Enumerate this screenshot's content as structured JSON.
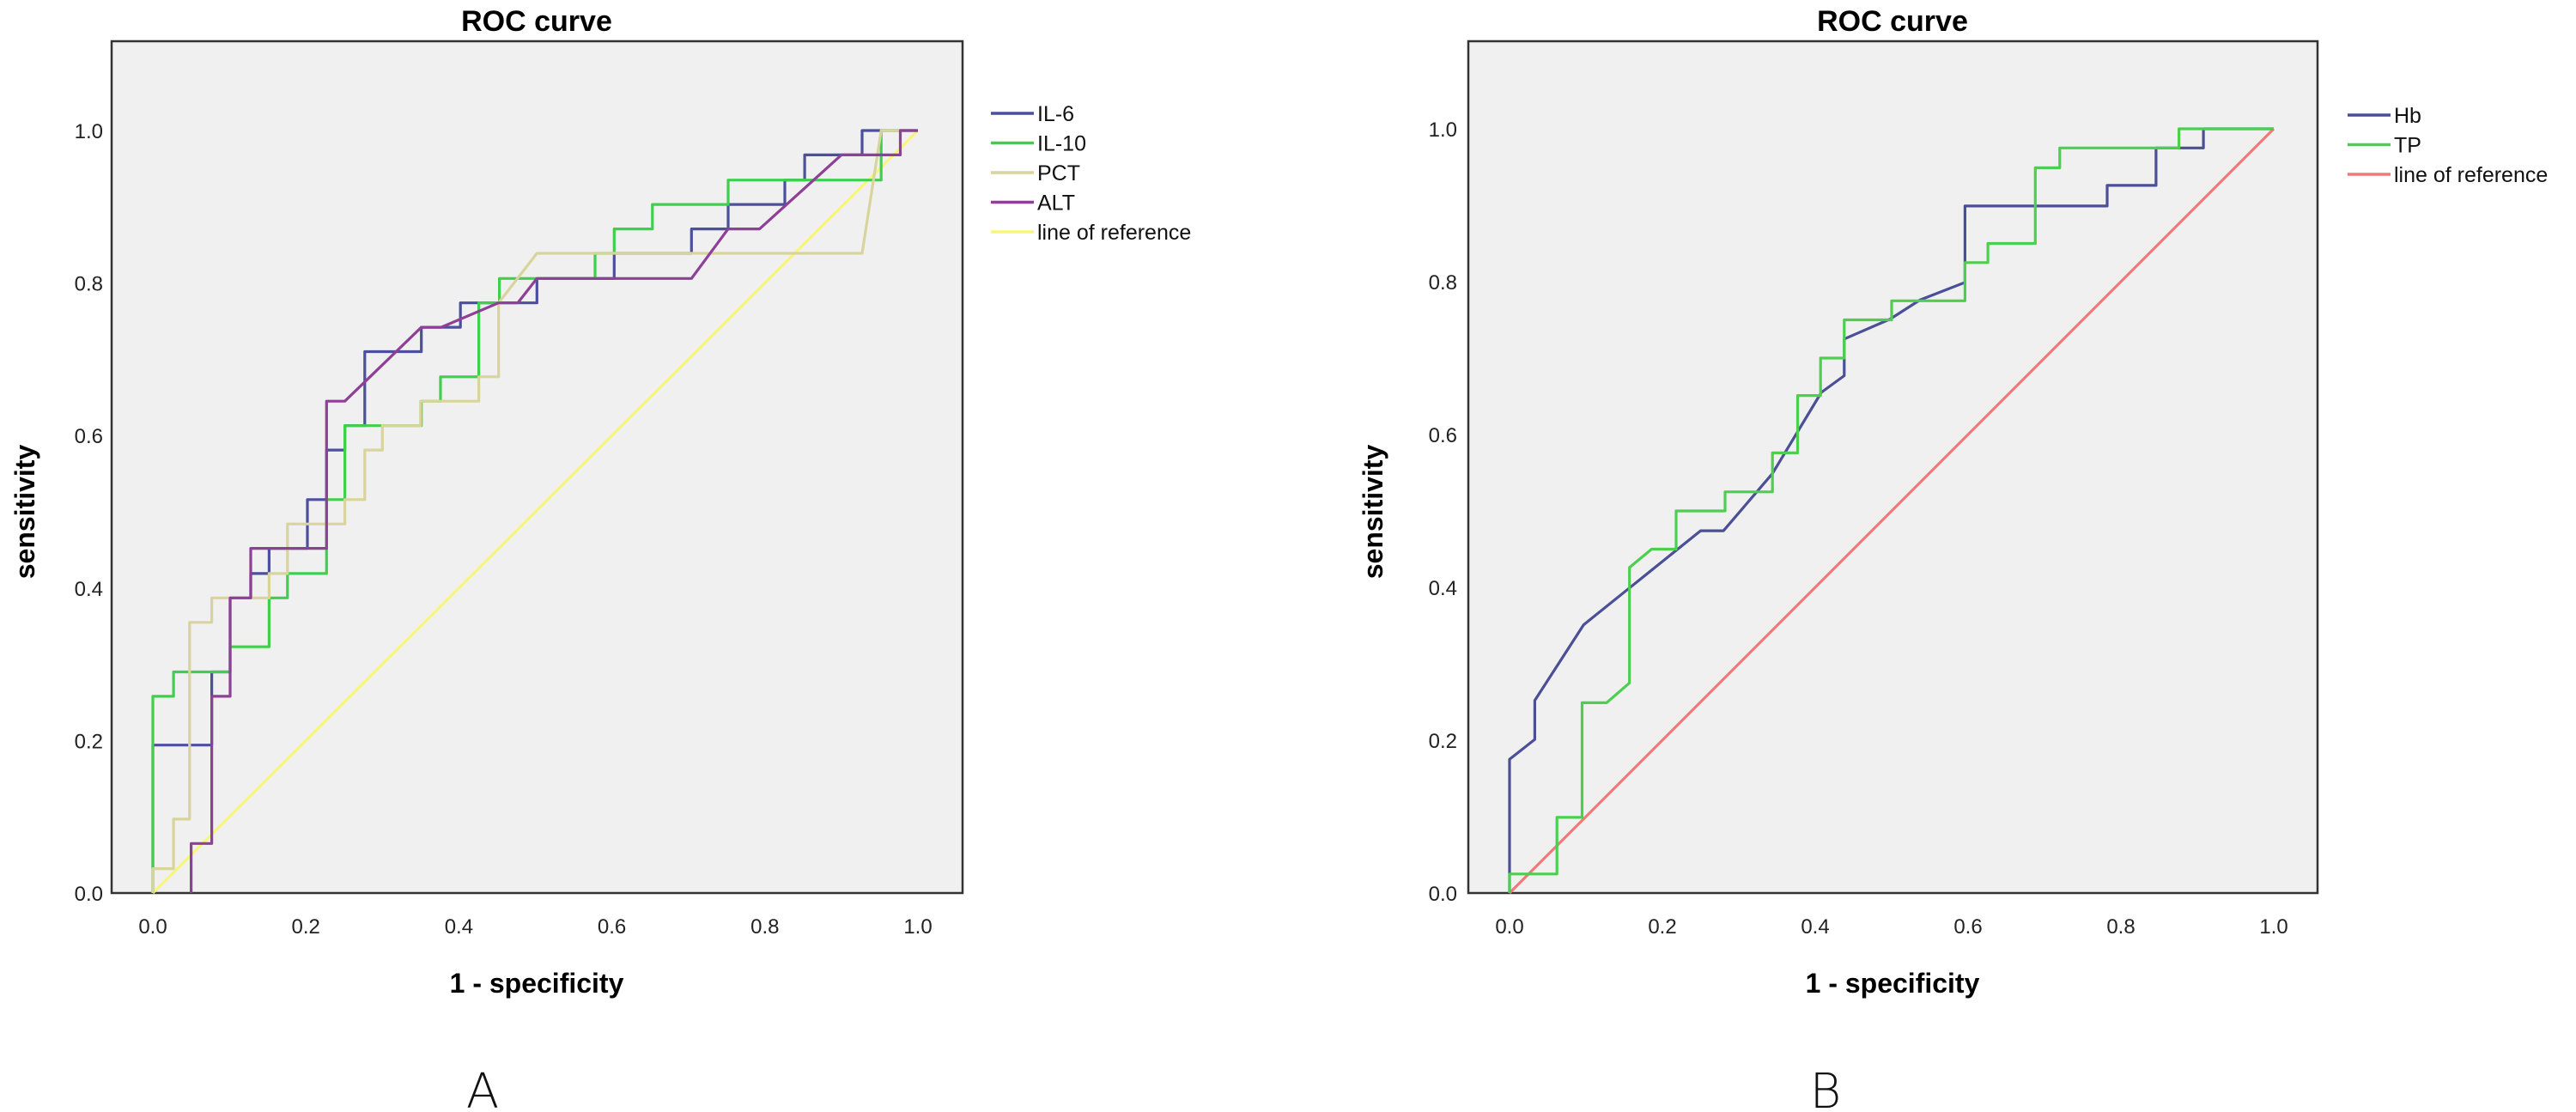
{
  "chart_data": [
    {
      "panel_label": "A",
      "type": "line",
      "title": "ROC curve",
      "xlabel": "1 - specificity",
      "ylabel": "sensitivity",
      "xlim": [
        0,
        1
      ],
      "ylim": [
        0,
        1
      ],
      "xticks": [
        "0.0",
        "0.2",
        "0.4",
        "0.6",
        "0.8",
        "1.0"
      ],
      "yticks": [
        "0.0",
        "0.2",
        "0.4",
        "0.6",
        "0.8",
        "1.0"
      ],
      "grid": false,
      "background": "#f0f0f0",
      "legend_position": "right",
      "series": [
        {
          "name": "IL-6",
          "color": "#4c4f9c",
          "points": [
            [
              0,
              0
            ],
            [
              0,
              0.194
            ],
            [
              0.077,
              0.194
            ],
            [
              0.077,
              0.29
            ],
            [
              0.101,
              0.29
            ],
            [
              0.101,
              0.387
            ],
            [
              0.128,
              0.387
            ],
            [
              0.128,
              0.419
            ],
            [
              0.152,
              0.419
            ],
            [
              0.152,
              0.452
            ],
            [
              0.202,
              0.452
            ],
            [
              0.202,
              0.516
            ],
            [
              0.227,
              0.516
            ],
            [
              0.227,
              0.581
            ],
            [
              0.251,
              0.581
            ],
            [
              0.251,
              0.613
            ],
            [
              0.277,
              0.613
            ],
            [
              0.277,
              0.71
            ],
            [
              0.351,
              0.71
            ],
            [
              0.351,
              0.742
            ],
            [
              0.402,
              0.742
            ],
            [
              0.402,
              0.774
            ],
            [
              0.502,
              0.774
            ],
            [
              0.502,
              0.806
            ],
            [
              0.603,
              0.806
            ],
            [
              0.603,
              0.839
            ],
            [
              0.704,
              0.839
            ],
            [
              0.704,
              0.871
            ],
            [
              0.752,
              0.871
            ],
            [
              0.752,
              0.903
            ],
            [
              0.826,
              0.903
            ],
            [
              0.826,
              0.935
            ],
            [
              0.852,
              0.935
            ],
            [
              0.852,
              0.968
            ],
            [
              0.927,
              0.968
            ],
            [
              0.927,
              1.0
            ],
            [
              1,
              1
            ]
          ]
        },
        {
          "name": "IL-10",
          "color": "#3fcf4c",
          "points": [
            [
              0,
              0
            ],
            [
              0,
              0.258
            ],
            [
              0.027,
              0.258
            ],
            [
              0.027,
              0.29
            ],
            [
              0.101,
              0.29
            ],
            [
              0.101,
              0.323
            ],
            [
              0.152,
              0.323
            ],
            [
              0.152,
              0.387
            ],
            [
              0.176,
              0.387
            ],
            [
              0.176,
              0.419
            ],
            [
              0.227,
              0.419
            ],
            [
              0.227,
              0.516
            ],
            [
              0.251,
              0.516
            ],
            [
              0.251,
              0.613
            ],
            [
              0.351,
              0.613
            ],
            [
              0.351,
              0.645
            ],
            [
              0.376,
              0.645
            ],
            [
              0.376,
              0.677
            ],
            [
              0.426,
              0.677
            ],
            [
              0.426,
              0.774
            ],
            [
              0.453,
              0.774
            ],
            [
              0.453,
              0.806
            ],
            [
              0.578,
              0.806
            ],
            [
              0.578,
              0.839
            ],
            [
              0.603,
              0.839
            ],
            [
              0.603,
              0.871
            ],
            [
              0.653,
              0.871
            ],
            [
              0.653,
              0.903
            ],
            [
              0.752,
              0.903
            ],
            [
              0.752,
              0.935
            ],
            [
              0.952,
              0.935
            ],
            [
              0.952,
              1.0
            ],
            [
              1,
              1
            ]
          ]
        },
        {
          "name": "PCT",
          "color": "#d8d49c",
          "points": [
            [
              0,
              0
            ],
            [
              0,
              0.032
            ],
            [
              0.027,
              0.032
            ],
            [
              0.027,
              0.097
            ],
            [
              0.048,
              0.097
            ],
            [
              0.048,
              0.355
            ],
            [
              0.077,
              0.355
            ],
            [
              0.077,
              0.387
            ],
            [
              0.152,
              0.387
            ],
            [
              0.152,
              0.419
            ],
            [
              0.176,
              0.419
            ],
            [
              0.176,
              0.484
            ],
            [
              0.251,
              0.484
            ],
            [
              0.251,
              0.516
            ],
            [
              0.277,
              0.516
            ],
            [
              0.277,
              0.581
            ],
            [
              0.3,
              0.581
            ],
            [
              0.3,
              0.613
            ],
            [
              0.35,
              0.613
            ],
            [
              0.35,
              0.645
            ],
            [
              0.426,
              0.645
            ],
            [
              0.426,
              0.677
            ],
            [
              0.452,
              0.677
            ],
            [
              0.452,
              0.774
            ],
            [
              0.502,
              0.839
            ],
            [
              0.927,
              0.839
            ],
            [
              0.952,
              1.0
            ],
            [
              1,
              1
            ]
          ]
        },
        {
          "name": "ALT",
          "color": "#8e3f96",
          "points": [
            [
              0.05,
              0
            ],
            [
              0.05,
              0.065
            ],
            [
              0.077,
              0.065
            ],
            [
              0.077,
              0.258
            ],
            [
              0.101,
              0.258
            ],
            [
              0.101,
              0.387
            ],
            [
              0.128,
              0.387
            ],
            [
              0.128,
              0.452
            ],
            [
              0.227,
              0.452
            ],
            [
              0.227,
              0.645
            ],
            [
              0.251,
              0.645
            ],
            [
              0.351,
              0.742
            ],
            [
              0.377,
              0.742
            ],
            [
              0.452,
              0.774
            ],
            [
              0.477,
              0.774
            ],
            [
              0.502,
              0.806
            ],
            [
              0.704,
              0.806
            ],
            [
              0.752,
              0.871
            ],
            [
              0.793,
              0.871
            ],
            [
              0.9,
              0.968
            ],
            [
              0.977,
              0.968
            ],
            [
              0.977,
              1.0
            ],
            [
              1,
              1
            ]
          ]
        },
        {
          "name": "line of reference",
          "color": "#f7f57c",
          "points": [
            [
              0,
              0
            ],
            [
              1,
              1
            ]
          ]
        }
      ]
    },
    {
      "panel_label": "B",
      "type": "line",
      "title": "ROC curve",
      "xlabel": "1 - specificity",
      "ylabel": "sensitivity",
      "xlim": [
        0,
        1
      ],
      "ylim": [
        0,
        1
      ],
      "xticks": [
        "0.0",
        "0.2",
        "0.4",
        "0.6",
        "0.8",
        "1.0"
      ],
      "yticks": [
        "0.0",
        "0.2",
        "0.4",
        "0.6",
        "0.8",
        "1.0"
      ],
      "grid": false,
      "background": "#f0f0f0",
      "legend_position": "right",
      "series": [
        {
          "name": "Hb",
          "color": "#4a4f96",
          "points": [
            [
              0,
              0
            ],
            [
              0,
              0.175
            ],
            [
              0.033,
              0.201
            ],
            [
              0.033,
              0.252
            ],
            [
              0.097,
              0.351
            ],
            [
              0.25,
              0.474
            ],
            [
              0.28,
              0.474
            ],
            [
              0.344,
              0.549
            ],
            [
              0.408,
              0.655
            ],
            [
              0.438,
              0.677
            ],
            [
              0.438,
              0.725
            ],
            [
              0.498,
              0.751
            ],
            [
              0.537,
              0.776
            ],
            [
              0.596,
              0.799
            ],
            [
              0.596,
              0.899
            ],
            [
              0.782,
              0.899
            ],
            [
              0.782,
              0.926
            ],
            [
              0.846,
              0.926
            ],
            [
              0.846,
              0.975
            ],
            [
              0.908,
              0.975
            ],
            [
              0.908,
              1.0
            ],
            [
              1,
              1
            ]
          ]
        },
        {
          "name": "TP",
          "color": "#4ccf4f",
          "points": [
            [
              0,
              0
            ],
            [
              0,
              0.025
            ],
            [
              0.062,
              0.025
            ],
            [
              0.062,
              0.099
            ],
            [
              0.095,
              0.099
            ],
            [
              0.095,
              0.249
            ],
            [
              0.127,
              0.249
            ],
            [
              0.157,
              0.275
            ],
            [
              0.157,
              0.426
            ],
            [
              0.186,
              0.45
            ],
            [
              0.218,
              0.45
            ],
            [
              0.218,
              0.5
            ],
            [
              0.282,
              0.5
            ],
            [
              0.282,
              0.525
            ],
            [
              0.344,
              0.525
            ],
            [
              0.344,
              0.576
            ],
            [
              0.377,
              0.576
            ],
            [
              0.377,
              0.651
            ],
            [
              0.407,
              0.651
            ],
            [
              0.407,
              0.7
            ],
            [
              0.438,
              0.7
            ],
            [
              0.438,
              0.75
            ],
            [
              0.5,
              0.75
            ],
            [
              0.5,
              0.775
            ],
            [
              0.596,
              0.775
            ],
            [
              0.596,
              0.825
            ],
            [
              0.626,
              0.825
            ],
            [
              0.626,
              0.85
            ],
            [
              0.688,
              0.85
            ],
            [
              0.688,
              0.949
            ],
            [
              0.72,
              0.949
            ],
            [
              0.72,
              0.975
            ],
            [
              0.876,
              0.975
            ],
            [
              0.876,
              1.0
            ],
            [
              1,
              1
            ]
          ]
        },
        {
          "name": "line of reference",
          "color": "#f07a78",
          "points": [
            [
              0,
              0
            ],
            [
              1,
              1
            ]
          ]
        }
      ]
    }
  ]
}
